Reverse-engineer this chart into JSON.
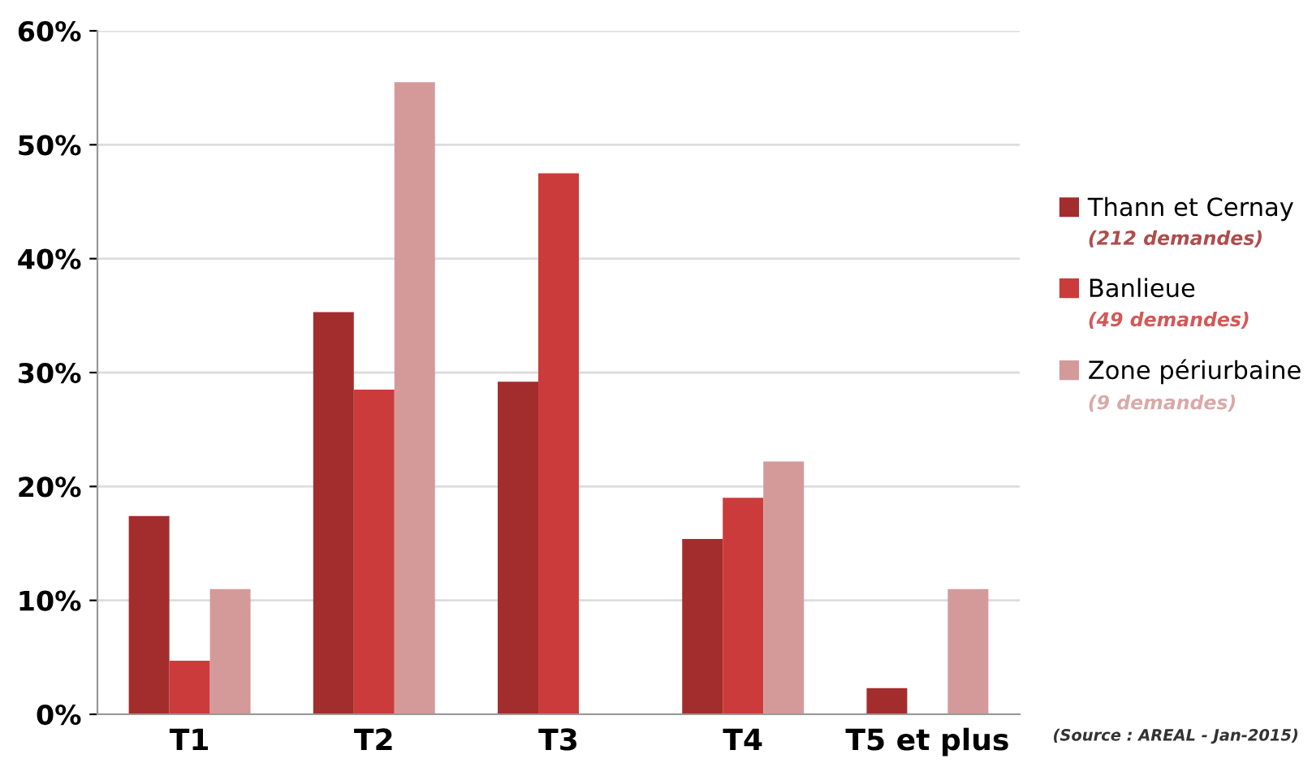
{
  "chart_data": {
    "type": "bar",
    "categories": [
      "T1",
      "T2",
      "T3",
      "T4",
      "T5 et plus"
    ],
    "series": [
      {
        "name": "Thann et Cernay",
        "color": "#a32d2d",
        "values": [
          17.4,
          35.3,
          29.2,
          15.4,
          2.3
        ]
      },
      {
        "name": "Banlieue",
        "color": "#cc3b3b",
        "values": [
          4.7,
          28.5,
          47.5,
          19.0,
          0
        ]
      },
      {
        "name": "Zone périurbaine",
        "color": "#d49a9a",
        "values": [
          11.0,
          55.5,
          0,
          22.2,
          11.0
        ]
      }
    ],
    "ylim": [
      0,
      60
    ],
    "yticks": [
      {
        "value": 0,
        "label": "0%"
      },
      {
        "value": 10,
        "label": "10%"
      },
      {
        "value": 20,
        "label": "20%"
      },
      {
        "value": 30,
        "label": "30%"
      },
      {
        "value": 40,
        "label": "40%"
      },
      {
        "value": 50,
        "label": "50%"
      },
      {
        "value": 60,
        "label": "60%"
      }
    ],
    "grid": "y",
    "legend": "right",
    "annotations": [
      "(212 demandes)",
      "(49 demandes)",
      "(9 demandes)",
      "(Source : AREAL - Jan-2015)"
    ]
  }
}
